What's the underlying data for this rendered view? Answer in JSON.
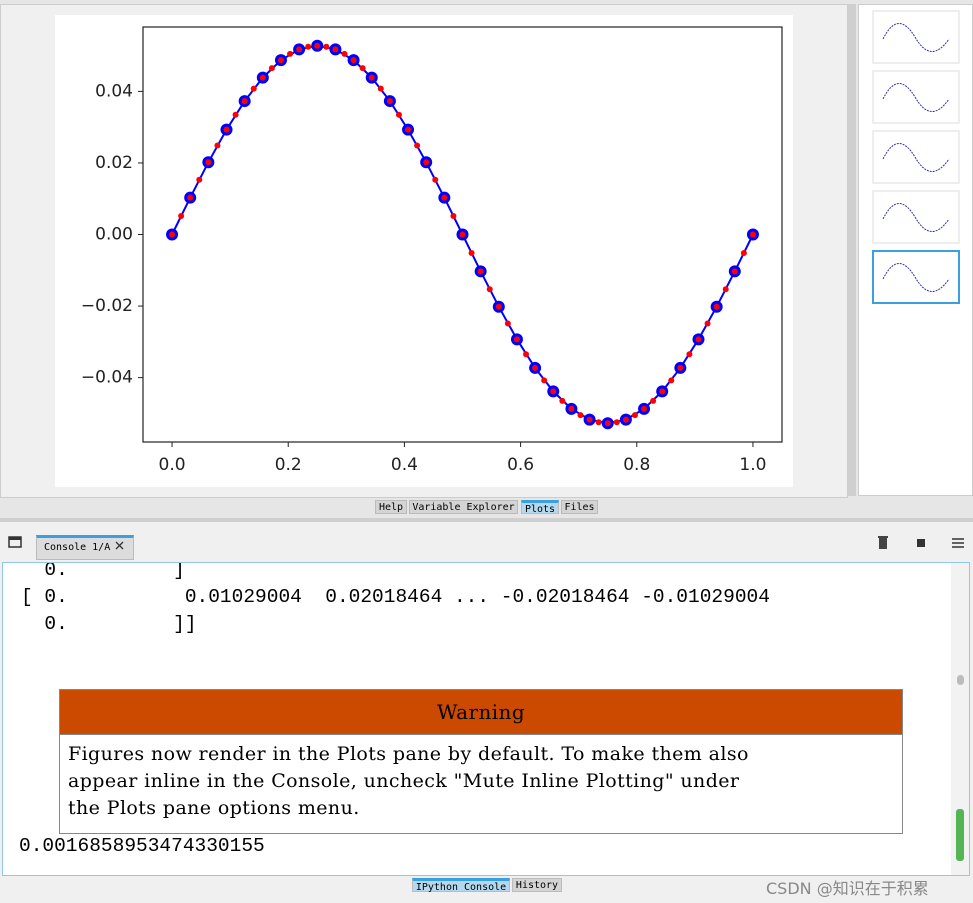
{
  "pane_tabs": [
    "Help",
    "Variable Explorer",
    "Plots",
    "Files"
  ],
  "chart_data": {
    "type": "line",
    "xlim": [
      -0.05,
      1.05
    ],
    "ylim": [
      -0.058,
      0.058
    ],
    "xticks": [
      {
        "value": 0,
        "label": "0.0"
      },
      {
        "value": 0.2,
        "label": "0.2"
      },
      {
        "value": 0.4,
        "label": "0.4"
      },
      {
        "value": 0.6,
        "label": "0.6"
      },
      {
        "value": 0.8,
        "label": "0.8"
      },
      {
        "value": 1,
        "label": "1.0"
      }
    ],
    "yticks": [
      {
        "value": -0.04,
        "label": "−0.04"
      },
      {
        "value": -0.02,
        "label": "−0.02"
      },
      {
        "value": 0,
        "label": "0.00"
      },
      {
        "value": 0.02,
        "label": "0.02"
      },
      {
        "value": 0.04,
        "label": "0.04"
      }
    ],
    "grid": false,
    "series": [
      {
        "color": "#0000ff",
        "mode": "lines+markers",
        "x": [
          0,
          0.03125,
          0.0625,
          0.09375,
          0.125,
          0.15625,
          0.1875,
          0.21875,
          0.25,
          0.28125,
          0.3125,
          0.34375,
          0.375,
          0.40625,
          0.4375,
          0.46875,
          0.5,
          0.53125,
          0.5625,
          0.59375,
          0.625,
          0.65625,
          0.6875,
          0.71875,
          0.75,
          0.78125,
          0.8125,
          0.84375,
          0.875,
          0.90625,
          0.9375,
          0.96875,
          1
        ],
        "values": [
          0,
          0.01029,
          0.020185,
          0.029304,
          0.037297,
          0.043856,
          0.04873,
          0.051732,
          0.052745,
          0.051732,
          0.04873,
          0.043856,
          0.037297,
          0.029304,
          0.020185,
          0.01029,
          0,
          -0.01029,
          -0.020185,
          -0.029304,
          -0.037297,
          -0.043856,
          -0.04873,
          -0.051732,
          -0.052745,
          -0.051732,
          -0.04873,
          -0.043856,
          -0.037297,
          -0.029304,
          -0.020185,
          -0.01029,
          0
        ]
      },
      {
        "color": "#ff0000",
        "mode": "markers",
        "x": [
          0,
          0.015625,
          0.03125,
          0.046875,
          0.0625,
          0.078125,
          0.09375,
          0.109375,
          0.125,
          0.140625,
          0.15625,
          0.171875,
          0.1875,
          0.203125,
          0.21875,
          0.234375,
          0.25,
          0.265625,
          0.28125,
          0.296875,
          0.3125,
          0.328125,
          0.34375,
          0.359375,
          0.375,
          0.390625,
          0.40625,
          0.421875,
          0.4375,
          0.453125,
          0.46875,
          0.484375,
          0.5,
          0.515625,
          0.53125,
          0.546875,
          0.5625,
          0.578125,
          0.59375,
          0.609375,
          0.625,
          0.640625,
          0.65625,
          0.671875,
          0.6875,
          0.703125,
          0.71875,
          0.734375,
          0.75,
          0.765625,
          0.78125,
          0.796875,
          0.8125,
          0.828125,
          0.84375,
          0.859375,
          0.875,
          0.890625,
          0.90625,
          0.921875,
          0.9375,
          0.953125,
          0.96875,
          0.984375,
          1
        ],
        "values": [
          0,
          0.00517,
          0.01029,
          0.015311,
          0.020185,
          0.024864,
          0.029304,
          0.033461,
          0.037297,
          0.040773,
          0.043856,
          0.046517,
          0.04873,
          0.050474,
          0.051732,
          0.052491,
          0.052745,
          0.052491,
          0.051732,
          0.050474,
          0.04873,
          0.046517,
          0.043856,
          0.040773,
          0.037297,
          0.033461,
          0.029304,
          0.024864,
          0.020185,
          0.015311,
          0.01029,
          0.00517,
          0,
          -0.00517,
          -0.01029,
          -0.015311,
          -0.020185,
          -0.024864,
          -0.029304,
          -0.033461,
          -0.037297,
          -0.040773,
          -0.043856,
          -0.046517,
          -0.04873,
          -0.050474,
          -0.051732,
          -0.052491,
          -0.052745,
          -0.052491,
          -0.051732,
          -0.050474,
          -0.04873,
          -0.046517,
          -0.043856,
          -0.040773,
          -0.037297,
          -0.033461,
          -0.029304,
          -0.024864,
          -0.020185,
          -0.015311,
          -0.01029,
          -0.00517,
          0
        ]
      }
    ]
  },
  "console": {
    "tab": "Console 1/A",
    "output_lines": [
      "  0.         ]",
      "[ 0.          0.01029004  0.02018464 ... -0.02018464 -0.01029004",
      "  0.         ]]"
    ],
    "warning": {
      "title": "Warning",
      "body_lines": [
        "Figures now render in the Plots pane by default. To make them also",
        "appear inline in the Console, uncheck \"Mute Inline Plotting\" under",
        "the Plots pane options menu."
      ]
    },
    "result": "0.0016858953474330155"
  },
  "bottom_tabs": [
    "IPython Console",
    "History"
  ],
  "watermark": "CSDN @知识在于积累"
}
